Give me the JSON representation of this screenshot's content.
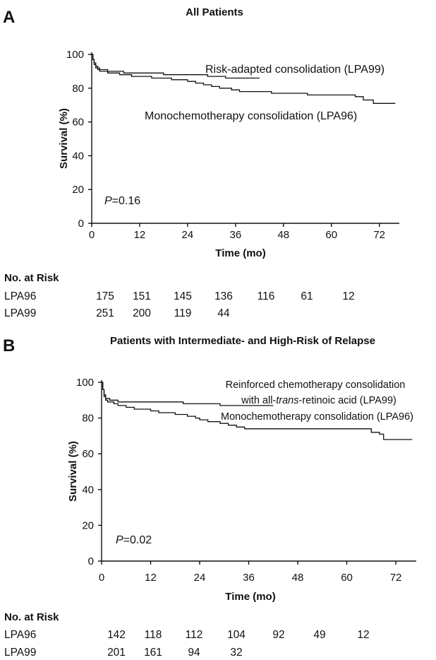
{
  "chart_data": [
    {
      "type": "line",
      "panel_label": "A",
      "title": "All Patients",
      "xlabel": "Time (mo)",
      "ylabel": "Survival (%)",
      "xticks": [
        0,
        12,
        24,
        36,
        48,
        60,
        72
      ],
      "yticks": [
        0,
        20,
        40,
        60,
        80,
        100
      ],
      "xlim": [
        0,
        77
      ],
      "ylim": [
        0,
        100
      ],
      "p_value": {
        "italic": "P",
        "rest": "=0.16"
      },
      "series": [
        {
          "name": "Risk-adapted consolidation (LPA99)",
          "points": [
            [
              0,
              100
            ],
            [
              0.3,
              97
            ],
            [
              0.6,
              95
            ],
            [
              1,
              93
            ],
            [
              1.5,
              92
            ],
            [
              2,
              91
            ],
            [
              4,
              90
            ],
            [
              8,
              89
            ],
            [
              14,
              89
            ],
            [
              18,
              88
            ],
            [
              28,
              88
            ],
            [
              29,
              87
            ],
            [
              30,
              87
            ],
            [
              33,
              87
            ],
            [
              33.5,
              86
            ],
            [
              42,
              86
            ]
          ]
        },
        {
          "name": "Monochemotherapy consolidation (LPA96)",
          "points": [
            [
              0,
              100
            ],
            [
              0.3,
              97
            ],
            [
              0.6,
              94
            ],
            [
              1,
              92
            ],
            [
              1.5,
              91
            ],
            [
              2,
              90
            ],
            [
              4,
              89
            ],
            [
              7,
              88
            ],
            [
              10,
              87
            ],
            [
              13,
              87
            ],
            [
              15,
              86
            ],
            [
              18,
              86
            ],
            [
              20,
              85
            ],
            [
              22,
              85
            ],
            [
              24,
              84
            ],
            [
              26,
              83
            ],
            [
              28,
              82
            ],
            [
              30,
              81
            ],
            [
              32,
              80
            ],
            [
              34,
              80
            ],
            [
              35,
              79
            ],
            [
              37,
              78
            ],
            [
              44,
              78
            ],
            [
              45,
              77
            ],
            [
              53,
              77
            ],
            [
              54,
              76
            ],
            [
              65,
              76
            ],
            [
              66,
              75
            ],
            [
              68,
              73
            ],
            [
              70,
              73
            ],
            [
              70.5,
              71
            ],
            [
              76,
              71
            ]
          ]
        }
      ],
      "risk_table": {
        "title": "No. at Risk",
        "rows": [
          {
            "label": "LPA96",
            "values": [
              "175",
              "151",
              "145",
              "136",
              "116",
              "61",
              "12"
            ]
          },
          {
            "label": "LPA99",
            "values": [
              "251",
              "200",
              "119",
              "44"
            ]
          }
        ]
      }
    },
    {
      "type": "line",
      "panel_label": "B",
      "title": "Patients with Intermediate- and High-Risk of Relapse",
      "xlabel": "Time (mo)",
      "ylabel": "Survival (%)",
      "xticks": [
        0,
        12,
        24,
        36,
        48,
        60,
        72
      ],
      "yticks": [
        0,
        20,
        40,
        60,
        80,
        100
      ],
      "xlim": [
        0,
        77
      ],
      "ylim": [
        0,
        100
      ],
      "p_value": {
        "italic": "P",
        "rest": "=0.02"
      },
      "series": [
        {
          "name": "Reinforced chemotherapy consolidation with all-trans-retinoic acid (LPA99)",
          "points": [
            [
              0,
              100
            ],
            [
              0.3,
              96
            ],
            [
              0.6,
              93
            ],
            [
              1,
              91
            ],
            [
              2,
              90
            ],
            [
              4,
              89
            ],
            [
              18,
              89
            ],
            [
              20,
              88
            ],
            [
              28,
              88
            ],
            [
              29,
              87
            ],
            [
              42,
              87
            ]
          ]
        },
        {
          "name": "Monochemotherapy consolidation (LPA96)",
          "points": [
            [
              0,
              100
            ],
            [
              0.3,
              96
            ],
            [
              0.6,
              92
            ],
            [
              1,
              90
            ],
            [
              1.5,
              89
            ],
            [
              3,
              88
            ],
            [
              4,
              87
            ],
            [
              6,
              86
            ],
            [
              8,
              85
            ],
            [
              10,
              85
            ],
            [
              12,
              84
            ],
            [
              14,
              83
            ],
            [
              17,
              83
            ],
            [
              18,
              82
            ],
            [
              21,
              81
            ],
            [
              23,
              80
            ],
            [
              24,
              79
            ],
            [
              26,
              78
            ],
            [
              28,
              78
            ],
            [
              29,
              77
            ],
            [
              31,
              76
            ],
            [
              33,
              75
            ],
            [
              35,
              74
            ],
            [
              37,
              74
            ],
            [
              65,
              74
            ],
            [
              66,
              72
            ],
            [
              68,
              71
            ],
            [
              69,
              68
            ],
            [
              76,
              68
            ]
          ]
        }
      ],
      "risk_table": {
        "title": "No. at Risk",
        "rows": [
          {
            "label": "LPA96",
            "values": [
              "142",
              "118",
              "112",
              "104",
              "92",
              "49",
              "12"
            ]
          },
          {
            "label": "LPA99",
            "values": [
              "201",
              "161",
              "94",
              "32"
            ]
          }
        ]
      }
    }
  ],
  "annotations": {
    "a_lpa99": "Risk-adapted consolidation (LPA99)",
    "a_lpa96": "Monochemotherapy consolidation (LPA96)",
    "b_lpa99_line1": "Reinforced chemotherapy consolidation",
    "b_lpa99_line2_pre": "with all-",
    "b_lpa99_line2_it": "trans",
    "b_lpa99_line2_post": "-retinoic acid (LPA99)",
    "b_lpa96": "Monochemotherapy consolidation (LPA96)"
  }
}
